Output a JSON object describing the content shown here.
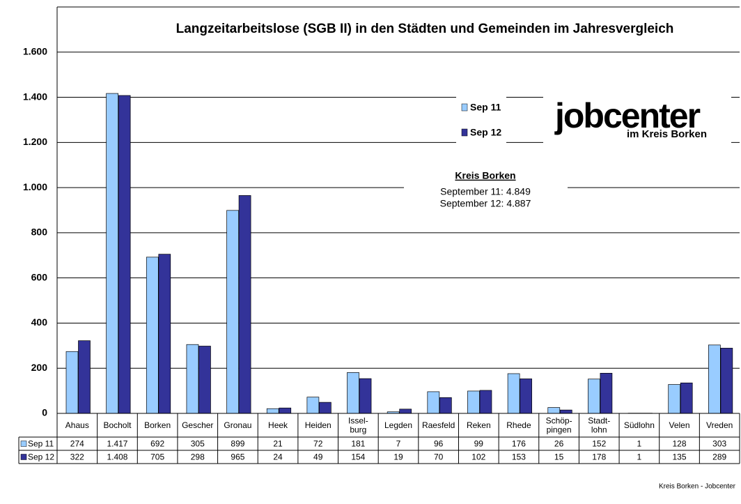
{
  "chart_data": {
    "type": "bar",
    "title": "Langzeitarbeitslose (SGB II) in den Städten und Gemeinden im Jahresvergleich",
    "categories": [
      "Ahaus",
      "Bocholt",
      "Borken",
      "Gescher",
      "Gronau",
      "Heek",
      "Heiden",
      "Issel-\nburg",
      "Legden",
      "Raesfeld",
      "Reken",
      "Rhede",
      "Schöp-\npingen",
      "Stadt-\nlohn",
      "Südlohn",
      "Velen",
      "Vreden"
    ],
    "series": [
      {
        "name": "Sep 11",
        "color": "#99ccff",
        "values": [
          274,
          1417,
          692,
          305,
          899,
          21,
          72,
          181,
          7,
          96,
          99,
          176,
          26,
          152,
          1,
          128,
          303
        ],
        "value_labels": [
          "274",
          "1.417",
          "692",
          "305",
          "899",
          "21",
          "72",
          "181",
          "7",
          "96",
          "99",
          "176",
          "26",
          "152",
          "1",
          "128",
          "303"
        ]
      },
      {
        "name": "Sep 12",
        "color": "#333399",
        "values": [
          322,
          1408,
          705,
          298,
          965,
          24,
          49,
          154,
          19,
          70,
          102,
          153,
          15,
          178,
          1,
          135,
          289
        ],
        "value_labels": [
          "322",
          "1.408",
          "705",
          "298",
          "965",
          "24",
          "49",
          "154",
          "19",
          "70",
          "102",
          "153",
          "15",
          "178",
          "1",
          "135",
          "289"
        ]
      }
    ],
    "ylim": [
      0,
      1800
    ],
    "yticks": [
      0,
      200,
      400,
      600,
      800,
      {
        "value": 1000,
        "label": "1.000"
      },
      {
        "value": 1200,
        "label": "1.200"
      },
      {
        "value": 1400,
        "label": "1.400"
      },
      {
        "value": 1600,
        "label": "1.600"
      }
    ],
    "grid": true,
    "annotation": {
      "title": "Kreis Borken",
      "lines": [
        "September 11: 4.849",
        "September 12: 4.887"
      ]
    },
    "logo": {
      "name": "jobcenter",
      "subtitle": "im Kreis Borken"
    },
    "footer": "Kreis Borken - Jobcenter"
  }
}
